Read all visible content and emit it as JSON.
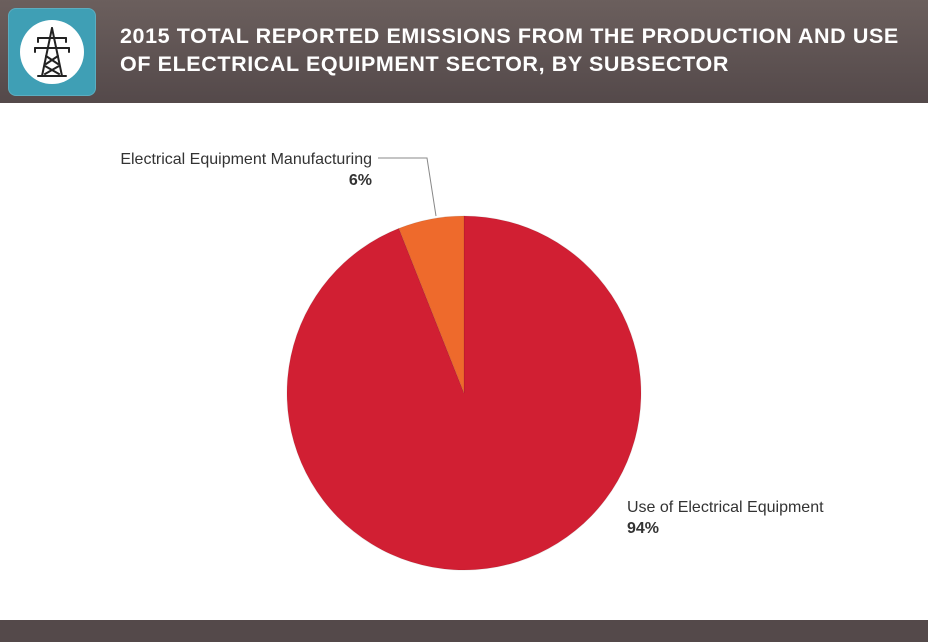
{
  "header": {
    "title": "2015 Total Reported Emissions from the Production and Use of Electrical Equipment Sector, by Subsector",
    "icon": "power-transmission-tower-icon"
  },
  "colors": {
    "header_bg": "#54494a",
    "icon_bg": "#3f9fb5",
    "slice_main": "#d11f33",
    "slice_small": "#ee6a2c"
  },
  "chart_data": {
    "type": "pie",
    "title": "2015 Total Reported Emissions from the Production and Use of Electrical Equipment Sector, by Subsector",
    "slices": [
      {
        "name": "Electrical Equipment Manufacturing",
        "value": 6,
        "label": "6%",
        "color": "#ee6a2c"
      },
      {
        "name": "Use of Electrical Equipment",
        "value": 94,
        "label": "94%",
        "color": "#d11f33"
      }
    ],
    "start_angle": "12 o'clock",
    "direction": "counterclockwise for first slice"
  }
}
